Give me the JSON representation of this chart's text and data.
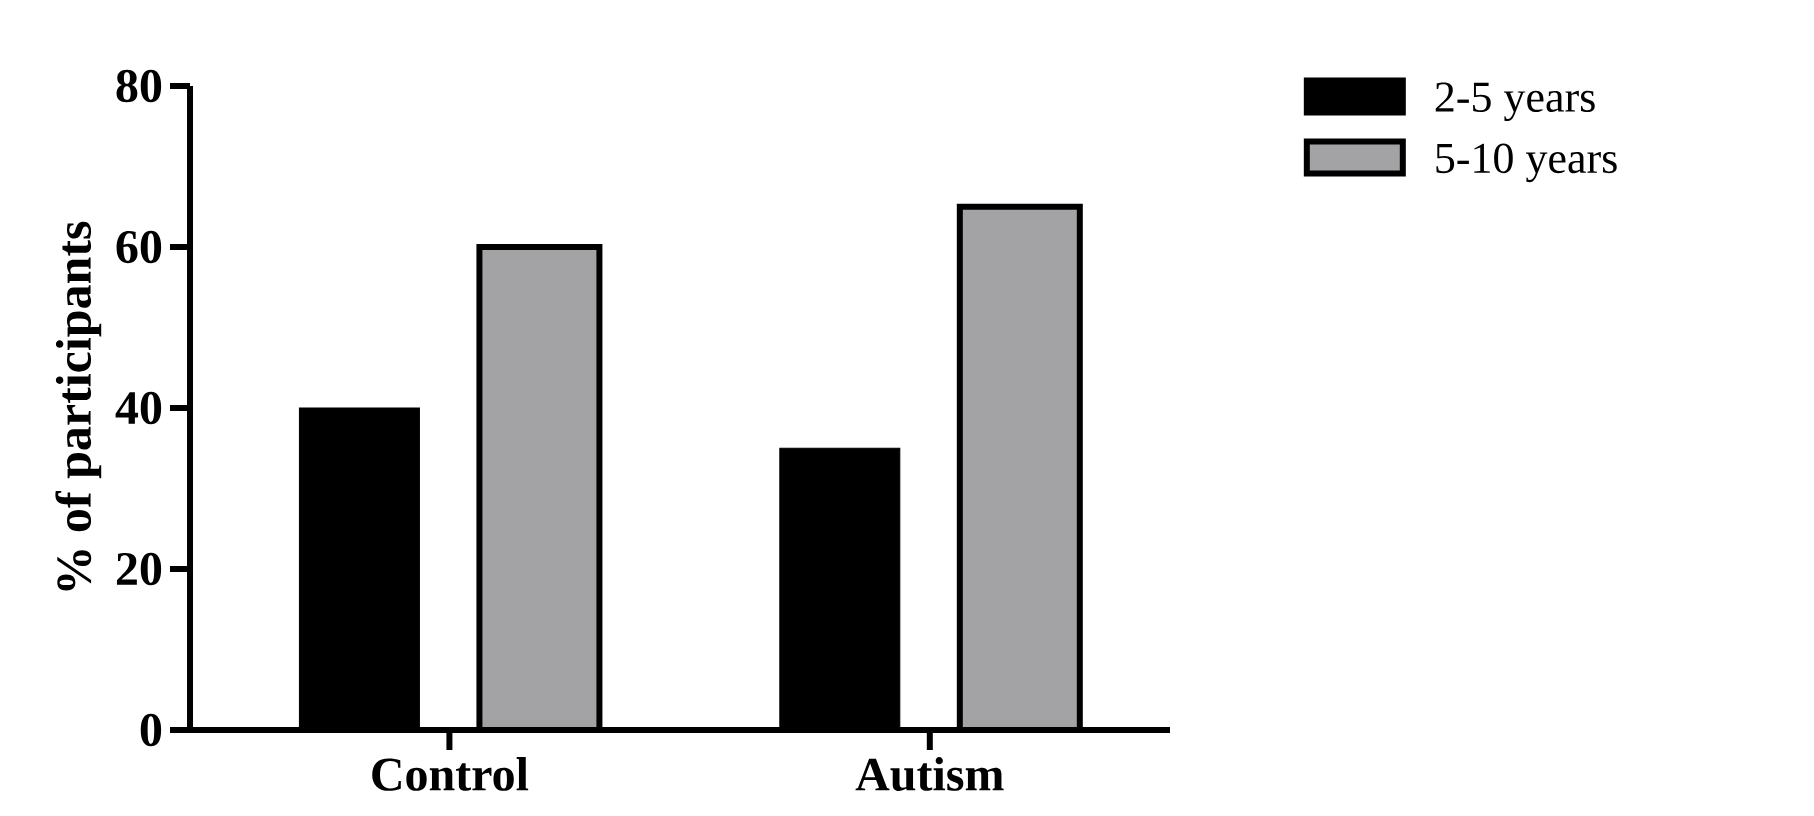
{
  "chart_data": {
    "type": "bar",
    "ylabel": "% of participants",
    "categories": [
      "Control",
      "Autism"
    ],
    "series": [
      {
        "name": "2-5 years",
        "color": "#000000",
        "values": [
          40,
          35
        ]
      },
      {
        "name": "5-10 years",
        "color": "#a3a3a6",
        "values": [
          60,
          65
        ]
      }
    ],
    "ylim": [
      0,
      80
    ],
    "yticks": [
      0,
      20,
      40,
      60,
      80
    ],
    "legend": "top right"
  }
}
